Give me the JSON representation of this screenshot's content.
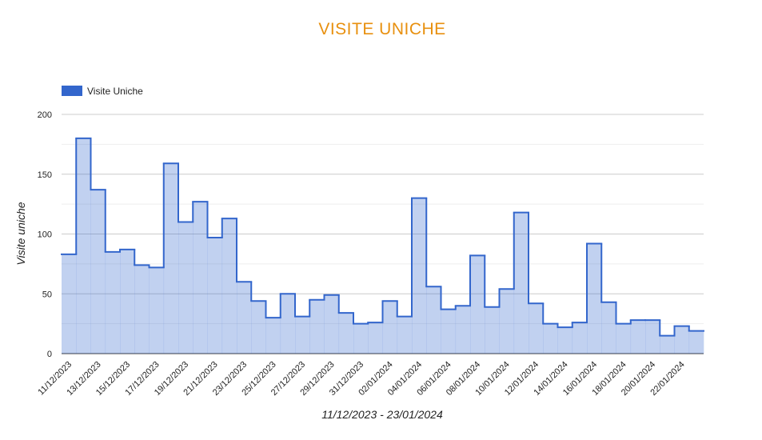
{
  "chart_data": {
    "type": "stepped-area",
    "title": "VISITE UNICHE",
    "x_label": "11/12/2023 - 23/01/2024",
    "y_label": "Visite uniche",
    "categories": [
      "11/12/2023",
      null,
      "13/12/2023",
      null,
      "15/12/2023",
      null,
      "17/12/2023",
      null,
      "19/12/2023",
      null,
      "21/12/2023",
      null,
      "23/12/2023",
      null,
      "25/12/2023",
      null,
      "27/12/2023",
      null,
      "29/12/2023",
      null,
      "31/12/2023",
      null,
      "02/01/2024",
      null,
      "04/01/2024",
      null,
      "06/01/2024",
      null,
      "08/01/2024",
      null,
      "10/01/2024",
      null,
      "12/01/2024",
      null,
      "14/01/2024",
      null,
      "16/01/2024",
      null,
      "18/01/2024",
      null,
      "20/01/2024",
      null,
      "22/01/2024",
      null
    ],
    "series": [
      {
        "name": "Visite Uniche",
        "color": "#3366cc",
        "values": [
          83,
          180,
          137,
          85,
          87,
          74,
          72,
          159,
          110,
          127,
          97,
          113,
          60,
          44,
          30,
          50,
          31,
          45,
          49,
          34,
          25,
          26,
          44,
          31,
          130,
          56,
          37,
          40,
          82,
          39,
          54,
          118,
          42,
          25,
          22,
          26,
          92,
          43,
          25,
          28,
          28,
          15,
          23,
          19
        ]
      }
    ],
    "ylim": [
      0,
      200
    ],
    "yticks": [
      0,
      50,
      100,
      150,
      200
    ],
    "minor_yticks": [
      25,
      75,
      125,
      175
    ],
    "grid": true,
    "legend": "top-left",
    "title_color": "#e8900f"
  }
}
